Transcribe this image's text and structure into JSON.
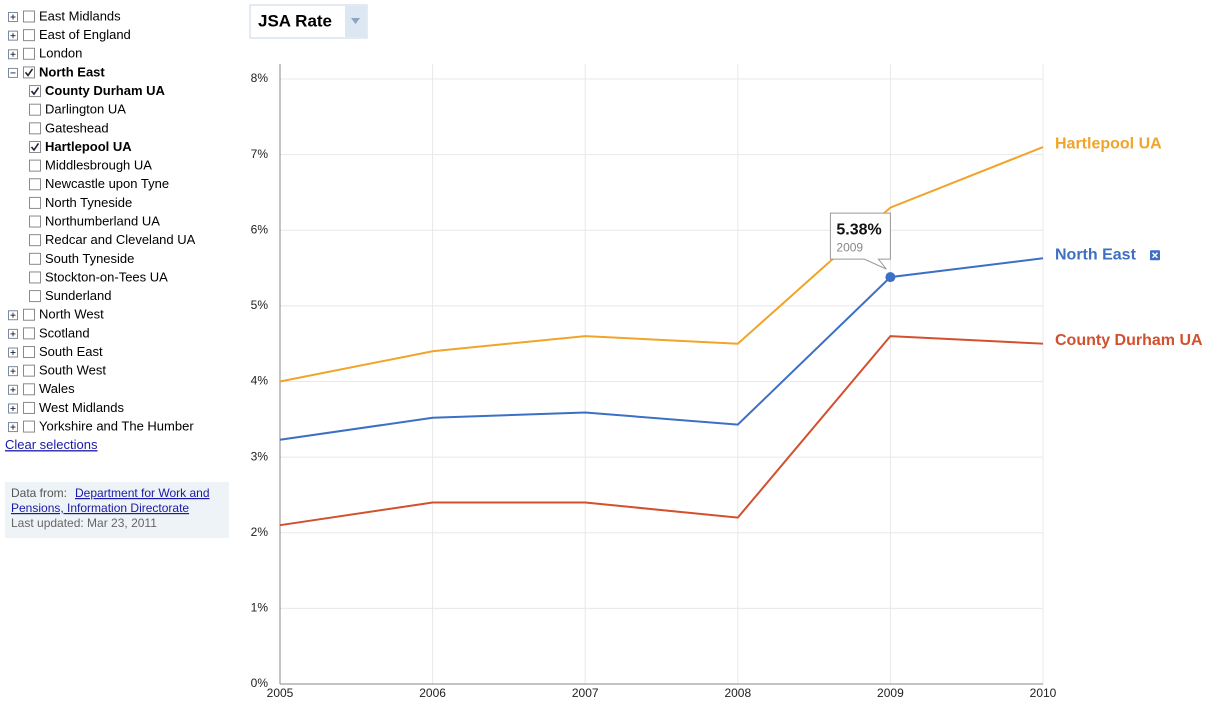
{
  "sidebar": {
    "regions": [
      {
        "label": "East Midlands",
        "checked": false
      },
      {
        "label": "East of England",
        "checked": false
      },
      {
        "label": "London",
        "checked": false
      },
      {
        "label": "North East",
        "checked": true,
        "children": [
          {
            "label": "County Durham UA",
            "checked": true
          },
          {
            "label": "Darlington UA",
            "checked": false
          },
          {
            "label": "Gateshead",
            "checked": false
          },
          {
            "label": "Hartlepool UA",
            "checked": true
          },
          {
            "label": "Middlesbrough UA",
            "checked": false
          },
          {
            "label": "Newcastle upon Tyne",
            "checked": false
          },
          {
            "label": "North Tyneside",
            "checked": false
          },
          {
            "label": "Northumberland UA",
            "checked": false
          },
          {
            "label": "Redcar and Cleveland UA",
            "checked": false
          },
          {
            "label": "South Tyneside",
            "checked": false
          },
          {
            "label": "Stockton-on-Tees UA",
            "checked": false
          },
          {
            "label": "Sunderland",
            "checked": false
          }
        ]
      },
      {
        "label": "North West",
        "checked": false
      },
      {
        "label": "Scotland",
        "checked": false
      },
      {
        "label": "South East",
        "checked": false
      },
      {
        "label": "South West",
        "checked": false
      },
      {
        "label": "Wales",
        "checked": false
      },
      {
        "label": "West Midlands",
        "checked": false
      },
      {
        "label": "Yorkshire and The Humber",
        "checked": false
      }
    ],
    "clear": "Clear selections",
    "source": {
      "prefix": "Data from:",
      "link": "Department for Work and Pensions, Information Directorate",
      "updated": "Last updated: Mar 23, 2011"
    }
  },
  "chart_data": {
    "type": "line",
    "metric": "JSA Rate",
    "x": [
      2005,
      2006,
      2007,
      2008,
      2009,
      2010
    ],
    "xlim": [
      2005,
      2010
    ],
    "xticks": [
      2005,
      2006,
      2007,
      2008,
      2009,
      2010
    ],
    "ylim": [
      0,
      8
    ],
    "yticks": [
      {
        "value": 0,
        "label": "0%"
      },
      {
        "value": 1,
        "label": "1%"
      },
      {
        "value": 2,
        "label": "2%"
      },
      {
        "value": 3,
        "label": "3%"
      },
      {
        "value": 4,
        "label": "4%"
      },
      {
        "value": 5,
        "label": "5%"
      },
      {
        "value": 6,
        "label": "6%"
      },
      {
        "value": 7,
        "label": "7%"
      },
      {
        "value": 8,
        "label": "8%"
      }
    ],
    "grid": true,
    "series": [
      {
        "name": "Hartlepool UA",
        "color": "#f0a42a",
        "values": [
          4.0,
          4.4,
          4.6,
          4.5,
          6.3,
          7.1
        ]
      },
      {
        "name": "North East",
        "color": "#3d6fc4",
        "values": [
          3.23,
          3.52,
          3.59,
          3.43,
          5.38,
          5.63
        ],
        "value_labels": [
          null,
          null,
          null,
          null,
          "5.38%",
          null
        ]
      },
      {
        "name": "County Durham UA",
        "color": "#d2502e",
        "values": [
          2.1,
          2.4,
          2.4,
          2.2,
          4.6,
          4.5
        ]
      }
    ]
  }
}
